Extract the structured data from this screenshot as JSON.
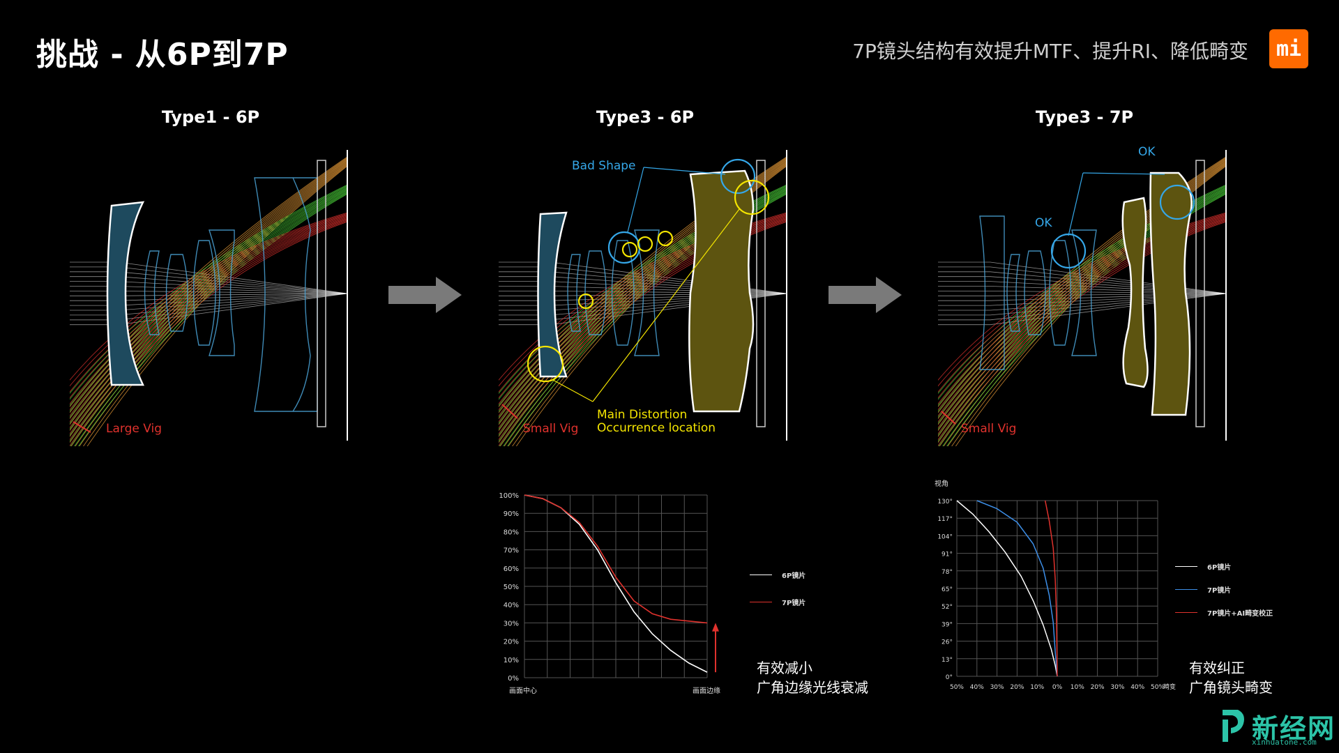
{
  "header": {
    "title": "挑战 -   从6P到7P",
    "subtitle": "7P镜头结构有效提升MTF、提升RI、降低畸变",
    "logo_text": "mi",
    "logo_color": "#ff6a00"
  },
  "panels": [
    {
      "title": "Type1 - 6P",
      "vig_label": "Large Vig"
    },
    {
      "title": "Type3 - 6P",
      "vig_label": "Small Vig",
      "bad_shape": "Bad Shape",
      "distortion_line1": "Main Distortion",
      "distortion_line2": "Occurrence location"
    },
    {
      "title": "Type3 - 7P",
      "vig_label": "Small Vig",
      "ok1": "OK",
      "ok2": "OK"
    }
  ],
  "colors": {
    "lens_blue": "#1e4a5e",
    "lens_olive": "#5d5410",
    "ray_red": "#e0322d",
    "ray_green": "#4bd23a",
    "ray_orange": "#f2a23a",
    "annot_blue": "#35a7e8",
    "annot_yellow": "#f4e500",
    "arrow_gray": "#7a7a7a"
  },
  "chart_data": [
    {
      "type": "line",
      "yticks": [
        "100%",
        "90%",
        "80%",
        "70%",
        "60%",
        "50%",
        "40%",
        "30%",
        "20%",
        "10%",
        "0%"
      ],
      "x_left": "画面中心",
      "x_right": "画面边缘",
      "ylim": [
        0,
        100
      ],
      "series": [
        {
          "name": "6P镜片",
          "color": "#ffffff",
          "x": [
            0,
            0.1,
            0.2,
            0.3,
            0.4,
            0.5,
            0.6,
            0.7,
            0.8,
            0.9,
            1.0
          ],
          "y": [
            100,
            98,
            93,
            84,
            70,
            52,
            36,
            24,
            15,
            8,
            3
          ]
        },
        {
          "name": "7P镜片",
          "color": "#e0322d",
          "x": [
            0,
            0.1,
            0.2,
            0.3,
            0.4,
            0.5,
            0.6,
            0.7,
            0.8,
            0.9,
            1.0
          ],
          "y": [
            100,
            98,
            93,
            85,
            72,
            55,
            42,
            35,
            32,
            31,
            30
          ]
        }
      ],
      "caption_line1": "有效减小",
      "caption_line2": "广角边缘光线衰减"
    },
    {
      "type": "line",
      "ylabel": "视角",
      "yticks": [
        "130°",
        "117°",
        "104°",
        "91°",
        "78°",
        "65°",
        "52°",
        "39°",
        "26°",
        "13°",
        "0°"
      ],
      "xticks": [
        "50%",
        "40%",
        "30%",
        "20%",
        "10%",
        "0%",
        "10%",
        "20%",
        "30%",
        "40%",
        "50%"
      ],
      "xlabel_right": "畸变",
      "xlim": [
        -50,
        50
      ],
      "ylim": [
        0,
        130
      ],
      "series": [
        {
          "name": "6P镜片",
          "color": "#ffffff",
          "x": [
            -50,
            -42,
            -34,
            -26,
            -18,
            -12,
            -7,
            -3,
            -1,
            0
          ],
          "y": [
            130,
            120,
            107,
            92,
            74,
            56,
            38,
            20,
            8,
            0
          ]
        },
        {
          "name": "7P镜片",
          "color": "#3d8fe8",
          "x": [
            -40,
            -30,
            -20,
            -12,
            -7,
            -4,
            -2,
            -1,
            0
          ],
          "y": [
            130,
            124,
            114,
            98,
            80,
            60,
            40,
            18,
            0
          ]
        },
        {
          "name": "7P镜片+AI畸变校正",
          "color": "#e0322d",
          "x": [
            -6,
            -4,
            -2,
            -1,
            -0.5,
            -0.2,
            0
          ],
          "y": [
            130,
            115,
            95,
            72,
            50,
            25,
            0
          ]
        }
      ],
      "caption_line1": "有效纠正",
      "caption_line2": "广角镜头畸变"
    }
  ],
  "watermark": {
    "text": "新经网",
    "sub": "xinhuatone.com"
  }
}
